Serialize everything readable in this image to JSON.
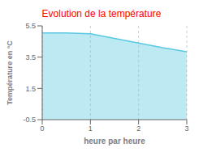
{
  "chart_data": {
    "type": "area",
    "title": "Evolution de la température",
    "title_color": "#ff0000",
    "x_label": "heure par heure",
    "y_label": "Température en °C",
    "x": [
      0,
      0.5,
      1.0,
      1.5,
      2.0,
      2.5,
      3.0
    ],
    "values": [
      5.05,
      5.05,
      5.0,
      4.7,
      4.4,
      4.1,
      3.85
    ],
    "color": "#59c8e0",
    "xlim": [
      0,
      3
    ],
    "ylim": [
      -0.5,
      5.5
    ],
    "xticks": [
      0,
      1,
      2,
      3
    ],
    "yticks": [
      -0.5,
      1.5,
      3.5,
      5.5
    ],
    "grid": "x"
  }
}
